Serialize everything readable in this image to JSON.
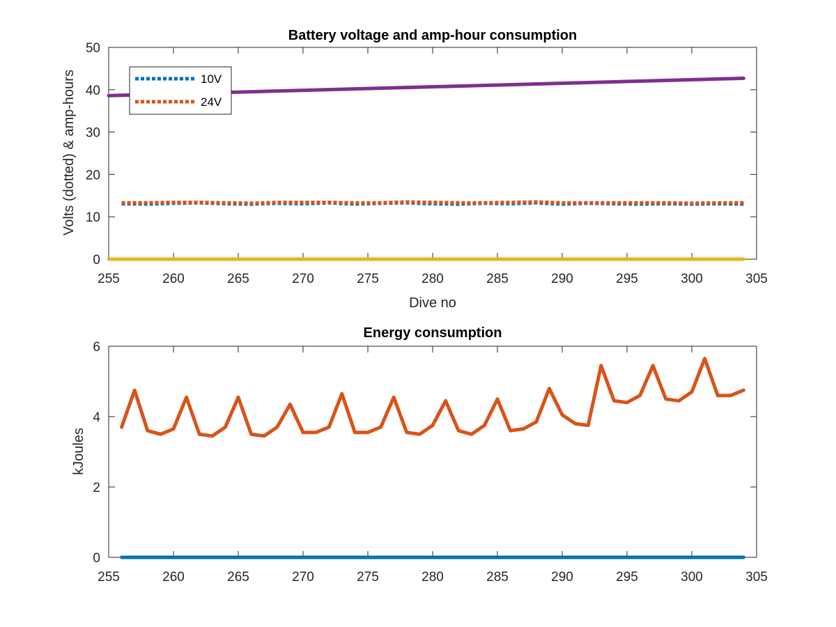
{
  "chart_data": [
    {
      "type": "line",
      "title": "Battery voltage and amp-hour consumption",
      "xlabel": "Dive no",
      "ylabel": "Volts (dotted) & amp-hours",
      "xlim": [
        255,
        305
      ],
      "ylim": [
        0,
        50
      ],
      "xticks": [
        255,
        260,
        265,
        270,
        275,
        280,
        285,
        290,
        295,
        300,
        305
      ],
      "yticks": [
        0,
        10,
        20,
        30,
        40,
        50
      ],
      "grid": false,
      "legend_position": "top-left",
      "series": [
        {
          "name": "10V",
          "style": "dotted",
          "color": "#0072BD",
          "x": [
            256,
            258,
            260,
            262,
            264,
            266,
            268,
            270,
            272,
            274,
            276,
            278,
            280,
            282,
            284,
            286,
            288,
            290,
            292,
            294,
            296,
            298,
            300,
            302,
            304
          ],
          "y": [
            13.1,
            13.0,
            13.2,
            13.3,
            13.1,
            13.0,
            13.2,
            13.1,
            13.3,
            13.0,
            13.2,
            13.3,
            13.1,
            13.0,
            13.2,
            13.1,
            13.3,
            13.0,
            13.2,
            13.1,
            13.0,
            13.1,
            13.0,
            13.1,
            13.0
          ]
        },
        {
          "name": "24V",
          "style": "dotted",
          "color": "#D95319",
          "x": [
            256,
            258,
            260,
            262,
            264,
            266,
            268,
            270,
            272,
            274,
            276,
            278,
            280,
            282,
            284,
            286,
            288,
            290,
            292,
            294,
            296,
            298,
            300,
            302,
            304
          ],
          "y": [
            13.3,
            13.3,
            13.4,
            13.4,
            13.3,
            13.2,
            13.4,
            13.4,
            13.4,
            13.3,
            13.3,
            13.5,
            13.4,
            13.3,
            13.3,
            13.4,
            13.5,
            13.3,
            13.3,
            13.3,
            13.3,
            13.3,
            13.2,
            13.3,
            13.3
          ]
        },
        {
          "style": "solid",
          "color": "#7E2F8E",
          "x": [
            255,
            304
          ],
          "y": [
            38.6,
            42.7
          ]
        },
        {
          "style": "solid",
          "color": "#EDB120",
          "x": [
            255,
            304
          ],
          "y": [
            0,
            0
          ]
        }
      ]
    },
    {
      "type": "line",
      "title": "Energy consumption",
      "xlabel": "",
      "ylabel": "kJoules",
      "xlim": [
        255,
        305
      ],
      "ylim": [
        0,
        6
      ],
      "xticks": [
        255,
        260,
        265,
        270,
        275,
        280,
        285,
        290,
        295,
        300,
        305
      ],
      "yticks": [
        0,
        2,
        4,
        6
      ],
      "grid": false,
      "series": [
        {
          "style": "solid",
          "color": "#0072BD",
          "x": [
            256,
            304
          ],
          "y": [
            0,
            0
          ]
        },
        {
          "style": "solid",
          "color": "#D95319",
          "x": [
            256,
            257,
            258,
            259,
            260,
            261,
            262,
            263,
            264,
            265,
            266,
            267,
            268,
            269,
            270,
            271,
            272,
            273,
            274,
            275,
            276,
            277,
            278,
            279,
            280,
            281,
            282,
            283,
            284,
            285,
            286,
            287,
            288,
            289,
            290,
            291,
            292,
            293,
            294,
            295,
            296,
            297,
            298,
            299,
            300,
            301,
            302,
            303,
            304
          ],
          "y": [
            3.7,
            4.75,
            3.6,
            3.5,
            3.65,
            4.55,
            3.5,
            3.45,
            3.7,
            4.55,
            3.5,
            3.45,
            3.7,
            4.35,
            3.55,
            3.55,
            3.7,
            4.65,
            3.55,
            3.55,
            3.7,
            4.55,
            3.55,
            3.5,
            3.75,
            4.45,
            3.6,
            3.5,
            3.75,
            4.5,
            3.6,
            3.65,
            3.85,
            4.8,
            4.05,
            3.8,
            3.75,
            5.45,
            4.45,
            4.4,
            4.6,
            5.45,
            4.5,
            4.45,
            4.7,
            5.65,
            4.6,
            4.6,
            4.75
          ]
        }
      ]
    }
  ]
}
